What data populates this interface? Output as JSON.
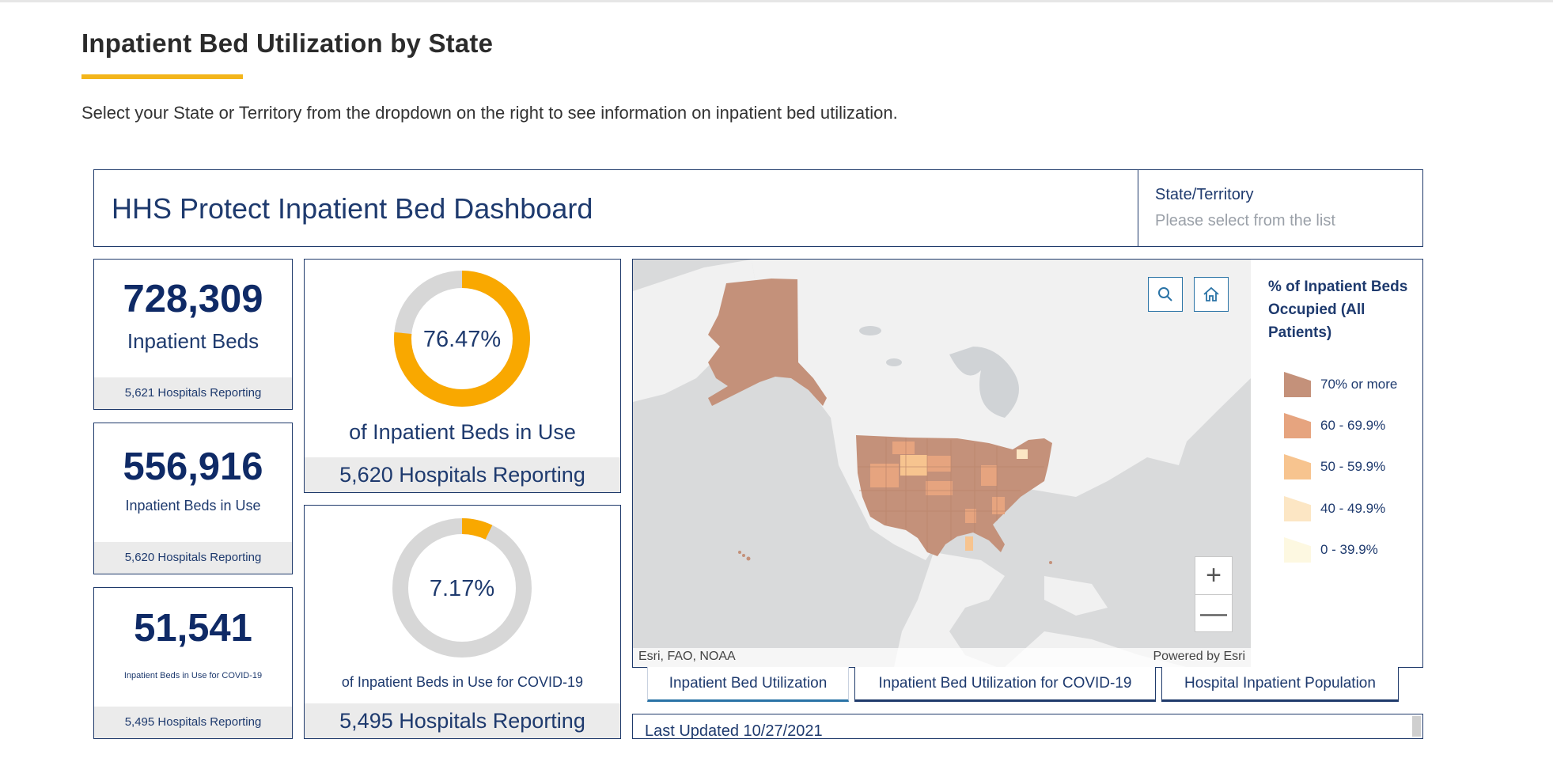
{
  "page": {
    "title": "Inpatient Bed Utilization by State",
    "intro": "Select your State or Territory from the dropdown on the right to see information on inpatient bed utilization.",
    "accent_color": "#f3b51b"
  },
  "dashboard": {
    "title": "HHS Protect Inpatient Bed Dashboard",
    "state_selector": {
      "label": "State/Territory",
      "placeholder": "Please select from the list"
    }
  },
  "stats": [
    {
      "value": "728,309",
      "label": "Inpatient Beds",
      "footer": "5,621 Hospitals Reporting"
    },
    {
      "value": "556,916",
      "label": "Inpatient Beds in Use",
      "footer": "5,620 Hospitals Reporting"
    },
    {
      "value": "51,541",
      "label": "Inpatient Beds in Use for COVID-19",
      "footer": "5,495 Hospitals Reporting"
    }
  ],
  "gauges": [
    {
      "percent_text": "76.47%",
      "fraction": 0.7647,
      "caption": "of Inpatient Beds in Use",
      "footer": "5,620 Hospitals Reporting"
    },
    {
      "percent_text": "7.17%",
      "fraction": 0.0717,
      "caption": "of Inpatient Beds in Use for COVID-19",
      "footer": "5,495 Hospitals Reporting"
    }
  ],
  "gauge_colors": {
    "fill": "#f9a800",
    "track": "#d7d7d7"
  },
  "map": {
    "search_icon": "search-icon",
    "home_icon": "home-icon",
    "zoom_in": "+",
    "zoom_out": "—",
    "attribution_left": "Esri, FAO, NOAA",
    "attribution_right": "Powered by Esri",
    "legend": {
      "title": "% of Inpatient Beds Occupied (All Patients)",
      "items": [
        {
          "label": "70% or more",
          "color": "#c4917a"
        },
        {
          "label": "60 - 69.9%",
          "color": "#e6a47f"
        },
        {
          "label": "50 - 59.9%",
          "color": "#f7c48f"
        },
        {
          "label": "40 - 49.9%",
          "color": "#fce6c4"
        },
        {
          "label": "0 - 39.9%",
          "color": "#fdf8e1"
        }
      ]
    }
  },
  "tabs": [
    {
      "label": "Inpatient Bed Utilization"
    },
    {
      "label": "Inpatient Bed Utilization for COVID-19"
    },
    {
      "label": "Hospital Inpatient Population"
    }
  ],
  "last_updated": "Last Updated 10/27/2021"
}
